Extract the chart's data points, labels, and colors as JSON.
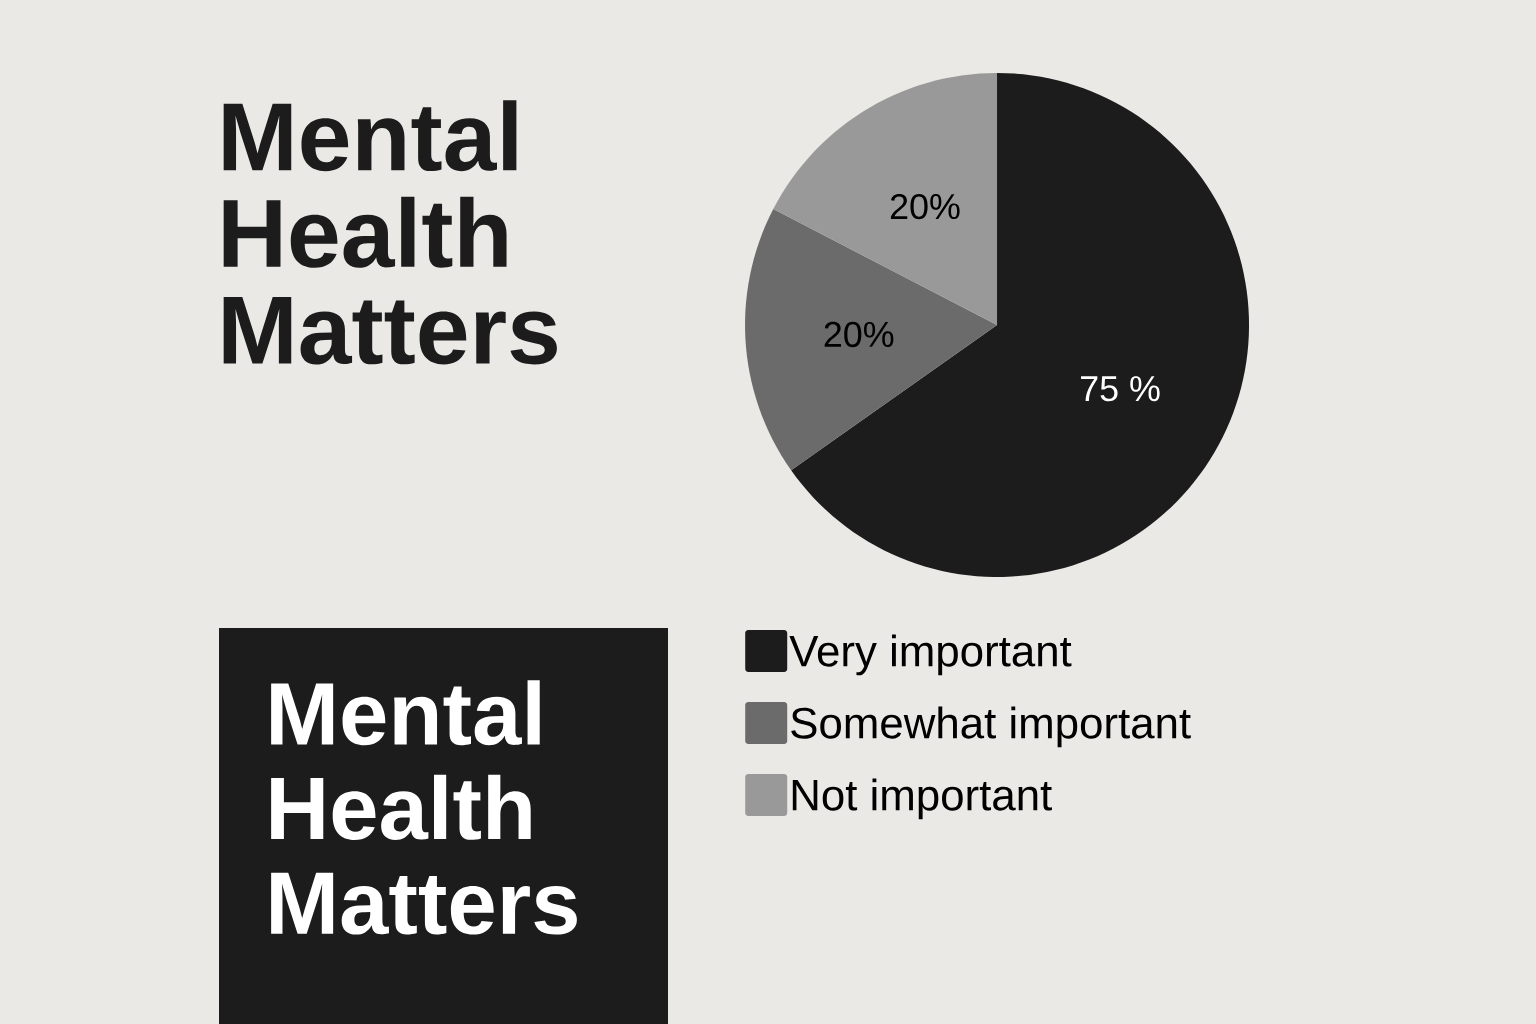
{
  "chart_data": {
    "type": "pie",
    "title": "Mental Health Matters",
    "annotations": [
      "Mental Health Matters"
    ],
    "categories": [
      "Very important",
      "Somewhat important",
      "Not important"
    ],
    "values": [
      75,
      20,
      20
    ],
    "value_labels": [
      "75 %",
      "20%",
      "20%"
    ],
    "colors": [
      "#1c1c1c",
      "#6b6b6b",
      "#999999"
    ],
    "legend": "bottom"
  }
}
